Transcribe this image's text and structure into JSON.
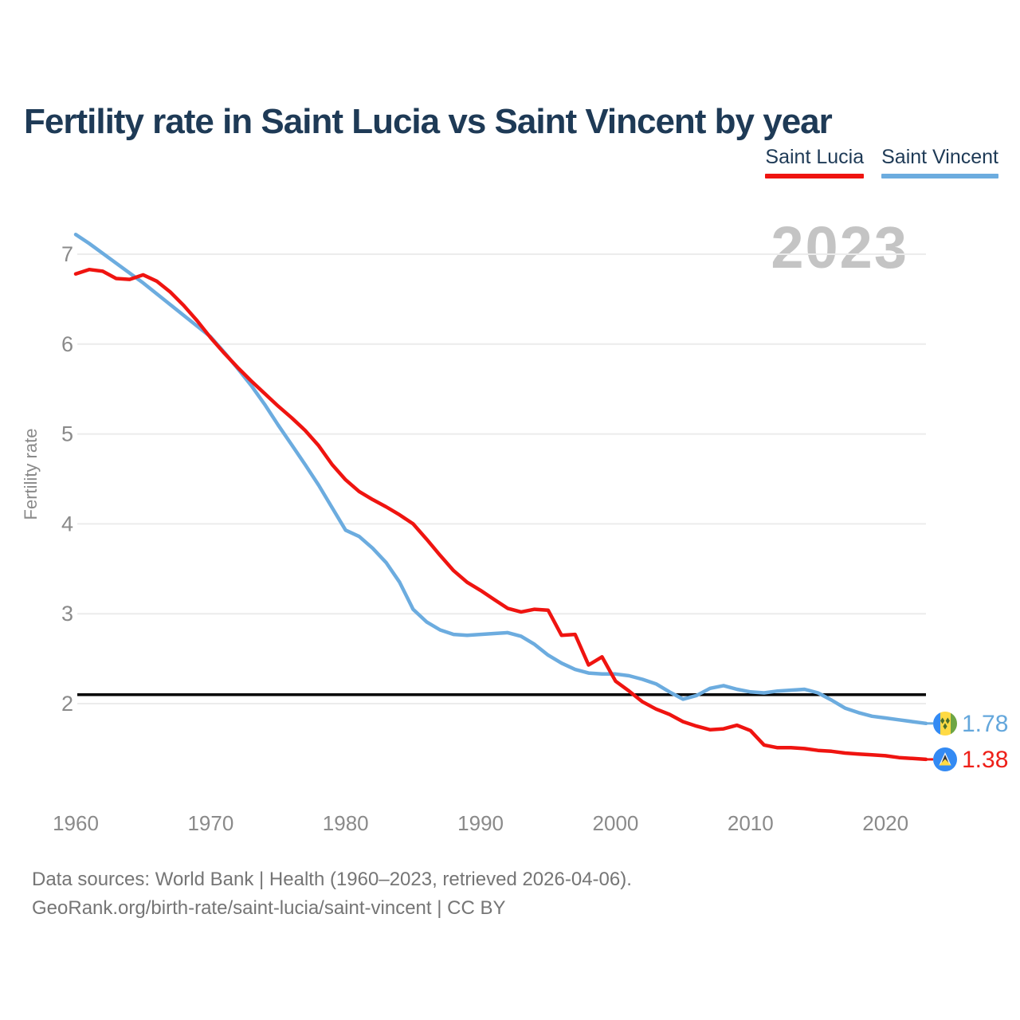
{
  "header": {
    "title": "Fertility rate in Saint Lucia vs Saint Vincent by year"
  },
  "legend": {
    "items": [
      {
        "label": "Saint Lucia",
        "color": "#ef1410"
      },
      {
        "label": "Saint Vincent",
        "color": "#6cacdf"
      }
    ]
  },
  "watermark": "2023",
  "chart_data": {
    "type": "line",
    "title": "Fertility rate in Saint Lucia vs Saint Vincent by year",
    "xlabel": "",
    "ylabel": "Fertility rate",
    "x_range": [
      1960,
      2023
    ],
    "ylim": [
      1.2,
      7.4
    ],
    "yticks": [
      2,
      3,
      4,
      5,
      6,
      7
    ],
    "xticks": [
      1960,
      1970,
      1980,
      1990,
      2000,
      2010,
      2020
    ],
    "grid": true,
    "legend_position": "top-right",
    "reference_line": {
      "value": 2.1,
      "color": "#000000"
    },
    "years_start": 1960,
    "series": [
      {
        "name": "Saint Lucia",
        "color": "#ef1410",
        "end_label": "1.38",
        "end_marker": "saint-lucia-flag",
        "values": [
          6.78,
          6.83,
          6.81,
          6.73,
          6.72,
          6.77,
          6.7,
          6.58,
          6.43,
          6.26,
          6.07,
          5.9,
          5.74,
          5.59,
          5.45,
          5.31,
          5.18,
          5.04,
          4.87,
          4.66,
          4.49,
          4.36,
          4.27,
          4.19,
          4.1,
          4.0,
          3.83,
          3.65,
          3.48,
          3.35,
          3.26,
          3.16,
          3.06,
          3.02,
          3.05,
          3.04,
          2.76,
          2.77,
          2.43,
          2.52,
          2.25,
          2.14,
          2.02,
          1.94,
          1.88,
          1.8,
          1.75,
          1.71,
          1.72,
          1.76,
          1.7,
          1.54,
          1.51,
          1.51,
          1.5,
          1.48,
          1.47,
          1.45,
          1.44,
          1.43,
          1.42,
          1.4,
          1.39,
          1.38
        ]
      },
      {
        "name": "Saint Vincent",
        "color": "#6cacdf",
        "end_label": "1.78",
        "end_marker": "saint-vincent-flag",
        "values": [
          7.22,
          7.12,
          7.01,
          6.9,
          6.79,
          6.68,
          6.56,
          6.44,
          6.32,
          6.2,
          6.08,
          5.91,
          5.73,
          5.54,
          5.33,
          5.1,
          4.88,
          4.66,
          4.43,
          4.18,
          3.93,
          3.86,
          3.73,
          3.57,
          3.35,
          3.05,
          2.91,
          2.82,
          2.77,
          2.76,
          2.77,
          2.78,
          2.79,
          2.75,
          2.66,
          2.54,
          2.45,
          2.38,
          2.34,
          2.33,
          2.33,
          2.31,
          2.27,
          2.22,
          2.13,
          2.05,
          2.09,
          2.17,
          2.2,
          2.16,
          2.13,
          2.12,
          2.14,
          2.15,
          2.16,
          2.12,
          2.04,
          1.95,
          1.9,
          1.86,
          1.84,
          1.82,
          1.8,
          1.78
        ]
      }
    ]
  },
  "footer": {
    "line1": "Data sources: World Bank | Health (1960–2023, retrieved 2026-04-06).",
    "line2": "GeoRank.org/birth-rate/saint-lucia/saint-vincent | CC BY"
  }
}
